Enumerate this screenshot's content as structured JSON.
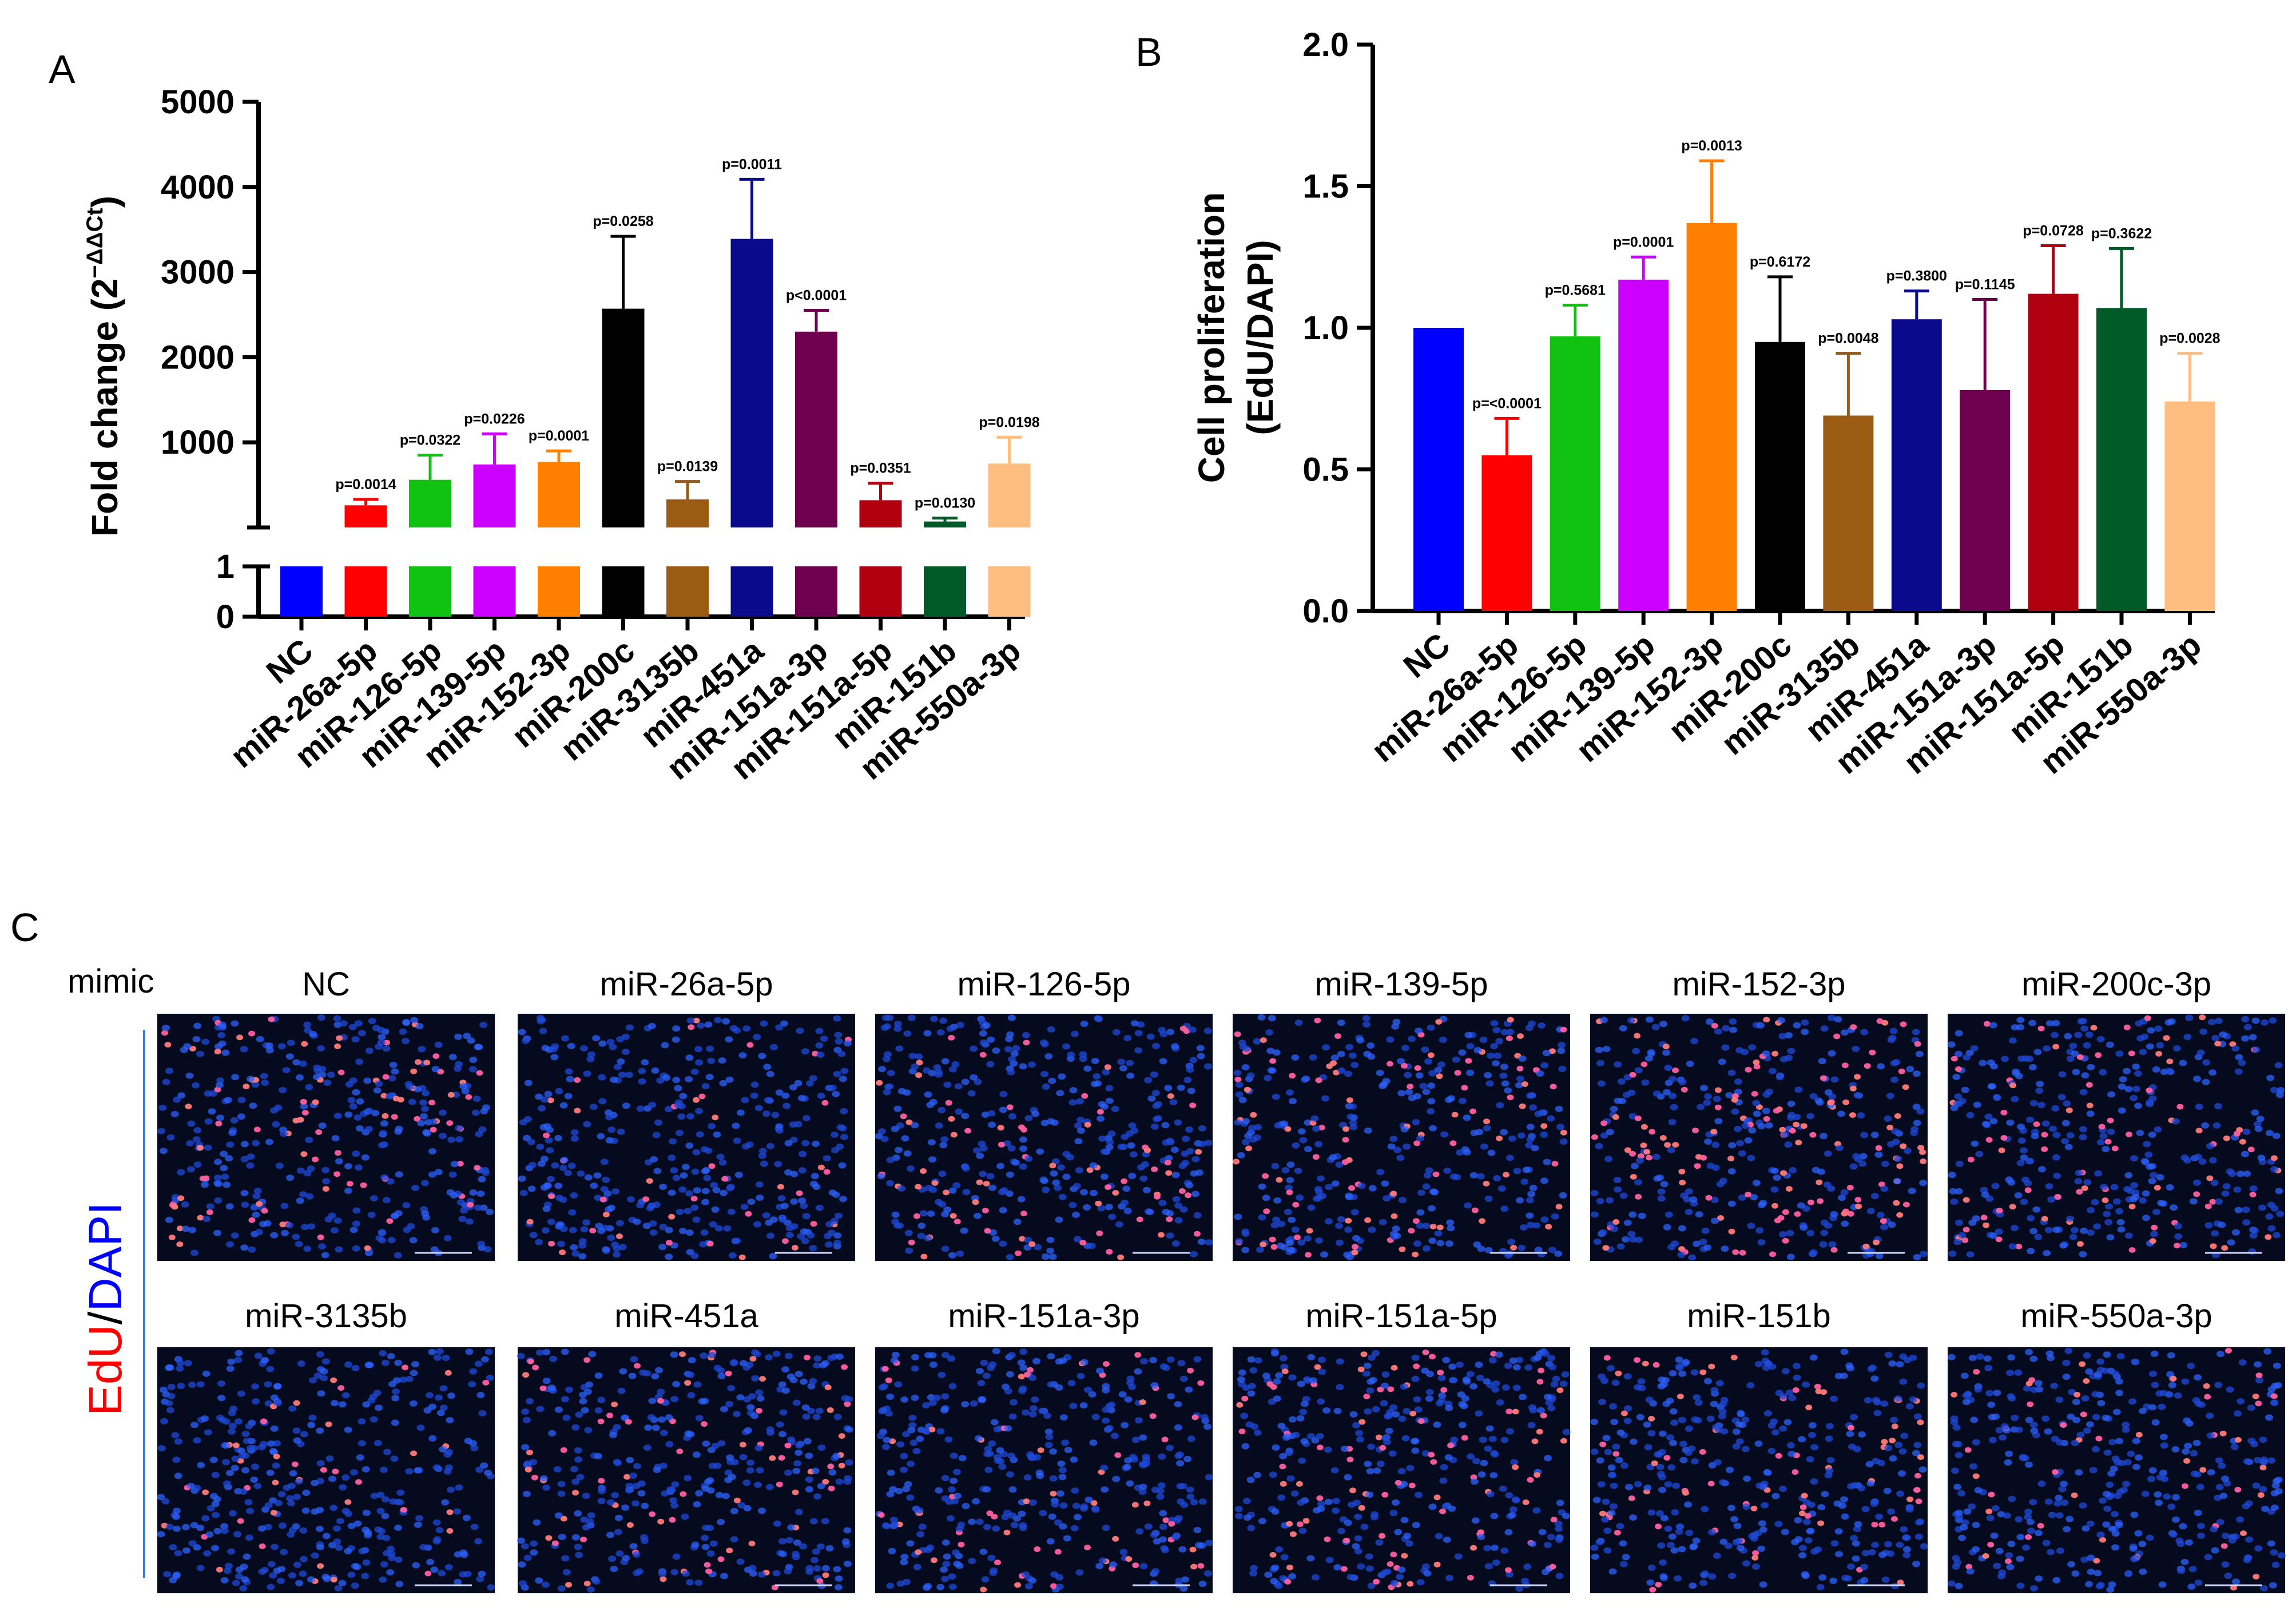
{
  "chart_data": [
    {
      "panel": "A",
      "type": "bar",
      "ylabel": "Fold change (2",
      "ylabel_sup": "−ΔΔCt",
      "ylabel_close": ")",
      "axis_break": true,
      "lower_segment": {
        "ylim": [
          0,
          1
        ],
        "ticks": [
          "0",
          "1"
        ]
      },
      "upper_segment": {
        "ylim": [
          0,
          5000
        ],
        "ticks": [
          "1000",
          "2000",
          "3000",
          "4000",
          "5000"
        ]
      },
      "categories": [
        "NC",
        "miR-26a-5p",
        "miR-126-5p",
        "miR-139-5p",
        "miR-152-3p",
        "miR-200c",
        "miR-3135b",
        "miR-451a",
        "miR-151a-3p",
        "miR-151a-5p",
        "miR-151b",
        "miR-550a-3p"
      ],
      "values": [
        1,
        260,
        560,
        740,
        770,
        2570,
        330,
        3390,
        2300,
        320,
        70,
        750
      ],
      "errors": [
        0,
        70,
        290,
        360,
        130,
        850,
        210,
        700,
        250,
        200,
        40,
        310
      ],
      "pvalues": [
        "",
        "p=0.0014",
        "p=0.0322",
        "p=0.0226",
        "p=0.0001",
        "p=0.0258",
        "p=0.0139",
        "p=0.0011",
        "p<0.0001",
        "p=0.0351",
        "p=0.0130",
        "p=0.0198"
      ],
      "colors": [
        "#0000ff",
        "#ff0000",
        "#12c212",
        "#cc00ff",
        "#ff8000",
        "#000000",
        "#9b5b12",
        "#0a0a8c",
        "#6e0050",
        "#b00010",
        "#005a28",
        "#ffbe80"
      ]
    },
    {
      "panel": "B",
      "type": "bar",
      "ylabel_line1": "Cell proliferation",
      "ylabel_line2": "(EdU/DAPI)",
      "ylim": [
        0,
        2.0
      ],
      "ticks": [
        "0.0",
        "0.5",
        "1.0",
        "1.5",
        "2.0"
      ],
      "categories": [
        "NC",
        "miR-26a-5p",
        "miR-126-5p",
        "miR-139-5p",
        "miR-152-3p",
        "miR-200c",
        "miR-3135b",
        "miR-451a",
        "miR-151a-3p",
        "miR-151a-5p",
        "miR-151b",
        "miR-550a-3p"
      ],
      "values": [
        1.0,
        0.55,
        0.97,
        1.17,
        1.37,
        0.95,
        0.69,
        1.03,
        0.78,
        1.12,
        1.07,
        0.74
      ],
      "errors": [
        0,
        0.13,
        0.11,
        0.08,
        0.22,
        0.23,
        0.22,
        0.1,
        0.32,
        0.17,
        0.21,
        0.17
      ],
      "pvalues": [
        "",
        "p=<0.0001",
        "p=0.5681",
        "p=0.0001",
        "p=0.0013",
        "p=0.6172",
        "p=0.0048",
        "p=0.3800",
        "p=0.1145",
        "p=0.0728",
        "p=0.3622",
        "p=0.0028"
      ],
      "colors": [
        "#0000ff",
        "#ff0000",
        "#12c212",
        "#cc00ff",
        "#ff8000",
        "#000000",
        "#9b5b12",
        "#0a0a8c",
        "#6e0050",
        "#b00010",
        "#005a28",
        "#ffbe80"
      ]
    }
  ],
  "panel_labels": {
    "a": "A",
    "b": "B",
    "c": "C"
  },
  "panel_c": {
    "row_label": "mimic",
    "side_label_edu": "EdU",
    "side_label_sep": "/",
    "side_label_dapi": "DAPI",
    "edu_color": "#ff0000",
    "dapi_color": "#0000ff",
    "row1_titles": [
      "NC",
      "miR-26a-5p",
      "miR-126-5p",
      "miR-139-5p",
      "miR-152-3p",
      "miR-200c-3p"
    ],
    "row2_titles": [
      "miR-3135b",
      "miR-451a",
      "miR-151a-3p",
      "miR-151a-5p",
      "miR-151b",
      "miR-550a-3p"
    ],
    "edu_density": [
      0.2,
      0.1,
      0.16,
      0.22,
      0.28,
      0.18,
      0.1,
      0.17,
      0.14,
      0.19,
      0.18,
      0.11
    ]
  }
}
